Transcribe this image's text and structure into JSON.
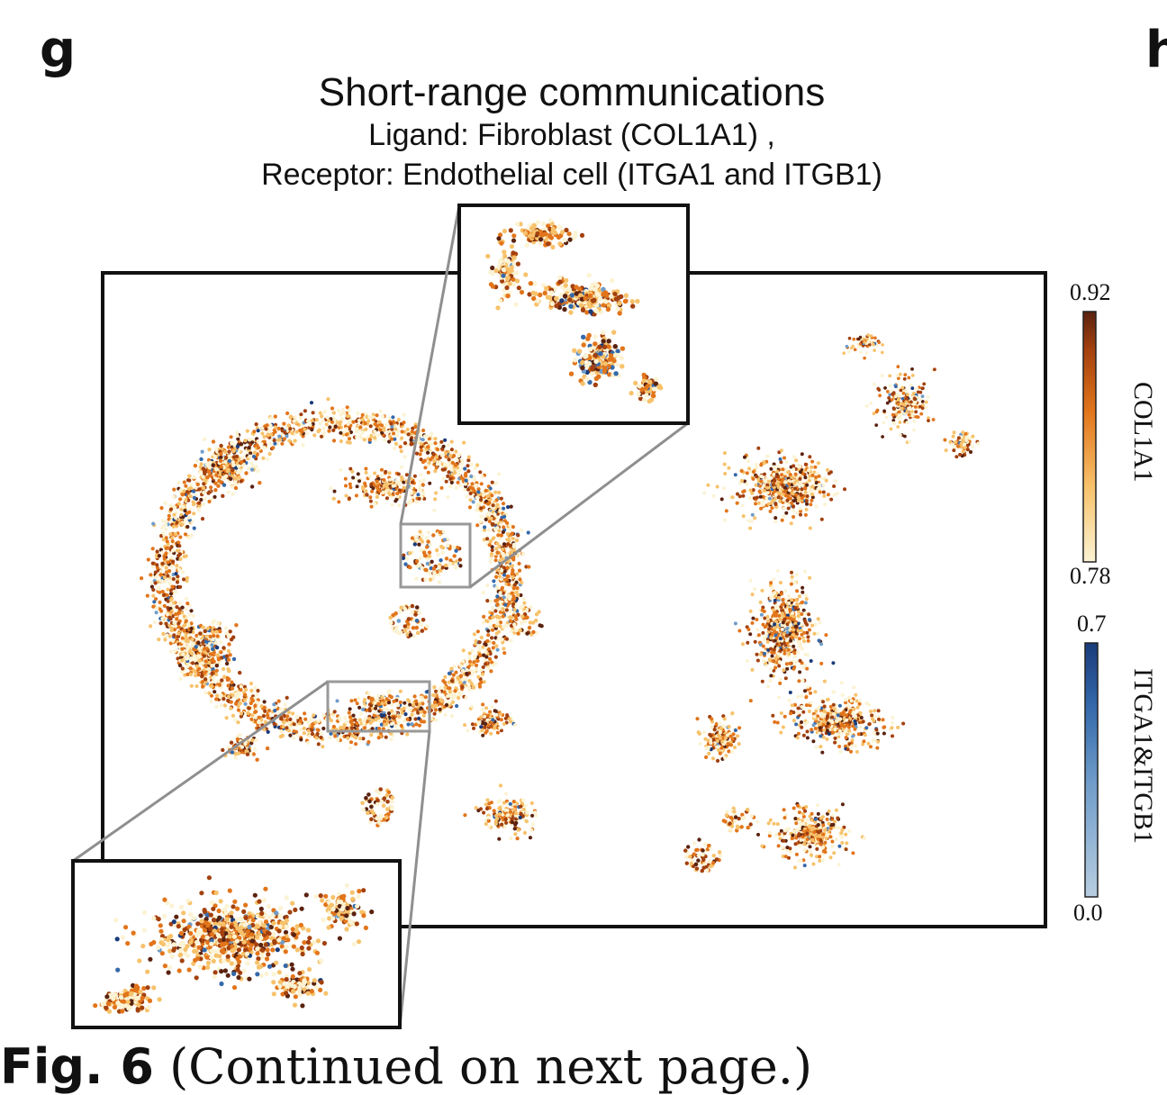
{
  "panels": {
    "left": "g",
    "right": "h"
  },
  "chart_data": {
    "type": "scatter",
    "title": "Short-range communications",
    "subtitle_line1": "Ligand: Fibroblast (COL1A1) ,",
    "subtitle_line2": "Receptor: Endothelial cell (ITGA1 and ITGB1)",
    "series": [
      {
        "name": "COL1A1",
        "colormap": [
          "#fbf3d3",
          "#f7c26b",
          "#e2751b",
          "#a3400e",
          "#5a2210"
        ]
      },
      {
        "name": "ITGA1&ITGB1",
        "colormap": [
          "#b7cde0",
          "#6f9cc9",
          "#3469ab",
          "#1a3b7a"
        ]
      }
    ],
    "colorbars": [
      {
        "label": "COL1A1",
        "max": "0.92",
        "min": "0.78",
        "range": [
          0.78,
          0.92
        ]
      },
      {
        "label": "ITGA1&ITGB1",
        "max": "0.7",
        "min": "0.0",
        "range": [
          0.0,
          0.7
        ]
      }
    ],
    "insets": [
      "top zoom region",
      "bottom zoom region"
    ]
  },
  "caption": {
    "prefix": "Fig. 6",
    "rest": " (Continued on next page.)"
  }
}
